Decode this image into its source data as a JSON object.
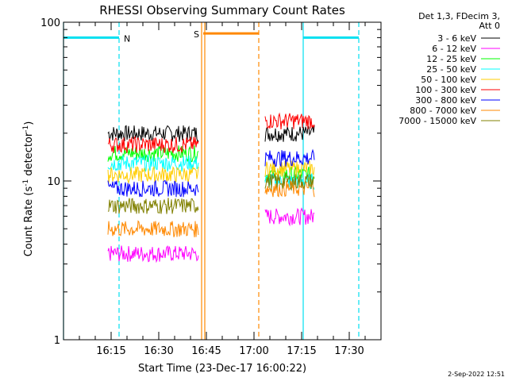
{
  "chart_data": {
    "type": "line",
    "title": "RHESSI Observing Summary Count Rates",
    "xlabel": "Start Time (23-Dec-17 16:00:22)",
    "ylabel_main": "Count Rate (s",
    "ylabel_sup": "-1",
    "ylabel_rest": " detector",
    "ylabel_sup2": "-1",
    "ylabel_end": ")",
    "y_scale": "log",
    "ylim": [
      1,
      100
    ],
    "y_ticks": [
      {
        "value": 1,
        "label": "1"
      },
      {
        "value": 10,
        "label": "10"
      },
      {
        "value": 100,
        "label": "100"
      }
    ],
    "x_range_min": [
      0,
      100
    ],
    "x_ticks": [
      {
        "min": 15,
        "label": "16:15"
      },
      {
        "min": 30,
        "label": "16:30"
      },
      {
        "min": 45,
        "label": "16:45"
      },
      {
        "min": 60,
        "label": "17:00"
      },
      {
        "min": 75,
        "label": "17:15"
      },
      {
        "min": 90,
        "label": "17:30"
      }
    ],
    "legend_header": [
      "Det 1,3, FDecim 3,",
      "Att 0"
    ],
    "legend_position": "right",
    "series": [
      {
        "name": "3 - 6 keV",
        "color": "#000000",
        "level1": 20,
        "level2": 20
      },
      {
        "name": "6 - 12 keV",
        "color": "#ff00ff",
        "level1": 3.5,
        "level2": 6
      },
      {
        "name": "12 - 25 keV",
        "color": "#00ff00",
        "level1": 15,
        "level2": 11
      },
      {
        "name": "25 - 50 keV",
        "color": "#00ffff",
        "level1": 13,
        "level2": 10
      },
      {
        "name": "50 - 100 keV",
        "color": "#ffcc00",
        "level1": 11,
        "level2": 12
      },
      {
        "name": "100 - 300 keV",
        "color": "#ff0000",
        "level1": 17,
        "level2": 24
      },
      {
        "name": "300 - 800 keV",
        "color": "#0000ff",
        "level1": 9,
        "level2": 14
      },
      {
        "name": "800 - 7000 keV",
        "color": "#ff8800",
        "level1": 5,
        "level2": 9
      },
      {
        "name": "7000 - 15000 keV",
        "color": "#808000",
        "level1": 7,
        "level2": 10
      }
    ],
    "segments_min": [
      [
        14,
        42.5
      ],
      [
        63.5,
        79
      ]
    ],
    "orbit_bars": [
      {
        "label": "N",
        "color": "#00e0f0",
        "start": 0,
        "end": 17.5,
        "level": 80
      },
      {
        "label": "S",
        "color": "#ff8800",
        "start": 44,
        "end": 61.5,
        "level": 85
      },
      {
        "label": "",
        "color": "#00e0f0",
        "start": 75.5,
        "end": 93,
        "level": 80
      }
    ],
    "vlines_solid": [
      {
        "min": 0,
        "color": "#00e0f0"
      },
      {
        "min": 43.5,
        "color": "#ff8800"
      },
      {
        "min": 44.5,
        "color": "#ff8800"
      },
      {
        "min": 75.5,
        "color": "#00e0f0"
      }
    ],
    "vlines_dashed": [
      {
        "min": 17.5,
        "color": "#00e0f0"
      },
      {
        "min": 61.5,
        "color": "#ff8800"
      },
      {
        "min": 93,
        "color": "#00e0f0"
      }
    ],
    "footer_date": "2-Sep-2022 12:51"
  }
}
